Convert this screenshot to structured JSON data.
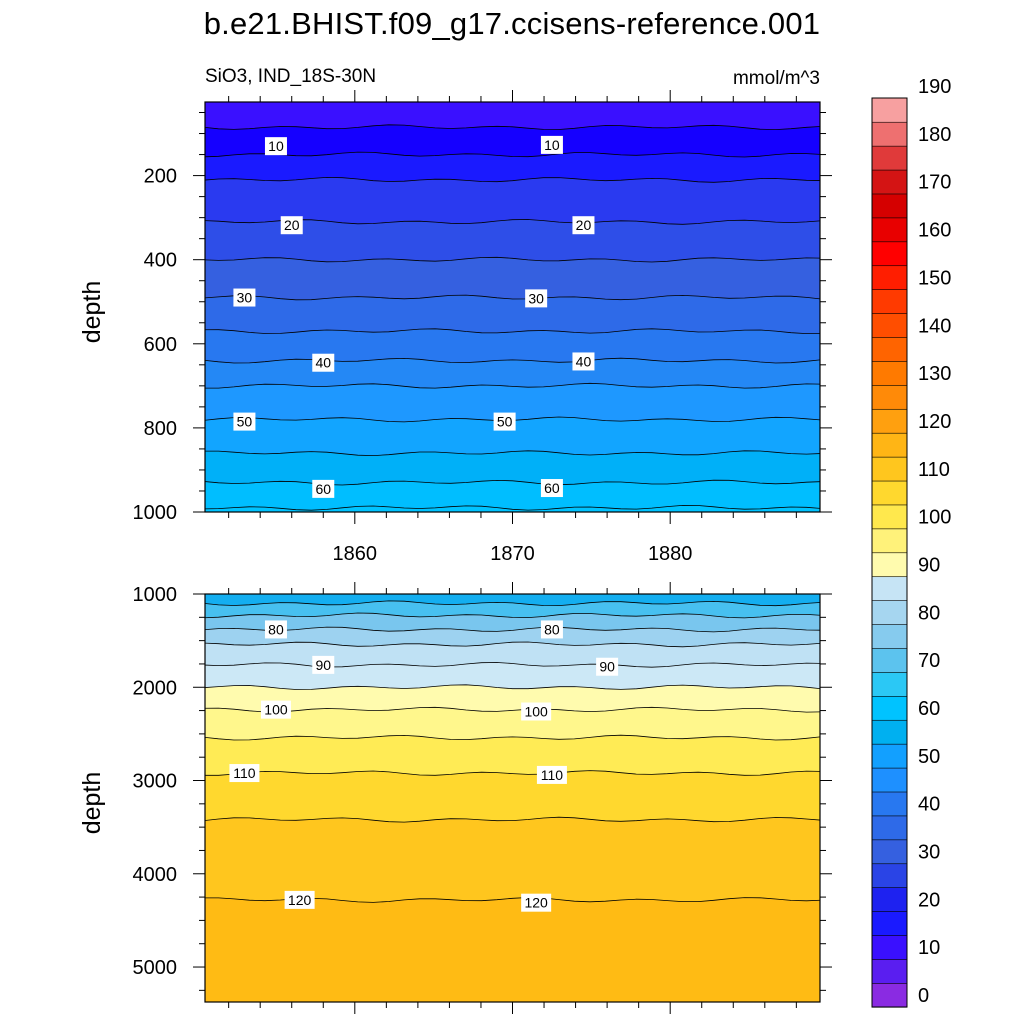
{
  "title": "b.e21.BHIST.f09_g17.ccisens-reference.001",
  "subtitle_left": "SiO3, IND_18S-30N",
  "subtitle_right": "mmol/m^3",
  "chart_data": [
    {
      "type": "heatmap",
      "panel": "upper",
      "xlabel": "",
      "ylabel": "depth",
      "x_ticks": [
        1860,
        1870,
        1880
      ],
      "xlim": [
        1850.5,
        1889.5
      ],
      "y_ticks": [
        200,
        400,
        600,
        800,
        1000
      ],
      "ylim": [
        1000,
        25
      ],
      "contour_levels": [
        5,
        10,
        15,
        20,
        25,
        30,
        35,
        40,
        45,
        50,
        55,
        60,
        65
      ],
      "contour_depths": [
        85,
        150,
        210,
        310,
        400,
        490,
        570,
        640,
        700,
        780,
        860,
        930,
        990
      ],
      "contour_labels": [
        {
          "value": 10,
          "x": 1855,
          "depth": 130
        },
        {
          "value": 10,
          "x": 1872.5,
          "depth": 127
        },
        {
          "value": 20,
          "x": 1856,
          "depth": 318
        },
        {
          "value": 20,
          "x": 1874.5,
          "depth": 318
        },
        {
          "value": 30,
          "x": 1853,
          "depth": 490
        },
        {
          "value": 30,
          "x": 1871.5,
          "depth": 492
        },
        {
          "value": 40,
          "x": 1858,
          "depth": 645
        },
        {
          "value": 40,
          "x": 1874.5,
          "depth": 642
        },
        {
          "value": 50,
          "x": 1853,
          "depth": 785
        },
        {
          "value": 50,
          "x": 1869.5,
          "depth": 785
        },
        {
          "value": 60,
          "x": 1858,
          "depth": 945
        },
        {
          "value": 60,
          "x": 1872.5,
          "depth": 943
        }
      ]
    },
    {
      "type": "heatmap",
      "panel": "lower",
      "xlabel": "",
      "ylabel": "depth",
      "x_ticks": [
        1860,
        1870,
        1880
      ],
      "xlim": [
        1850.5,
        1889.5
      ],
      "y_ticks": [
        1000,
        2000,
        3000,
        4000,
        5000
      ],
      "ylim": [
        5375,
        1000
      ],
      "contour_levels": [
        70,
        75,
        80,
        85,
        90,
        95,
        100,
        105,
        110,
        115,
        120
      ],
      "contour_depths": [
        1100,
        1230,
        1380,
        1540,
        1760,
        2000,
        2240,
        2540,
        2920,
        3420,
        4280
      ],
      "contour_labels": [
        {
          "value": 80,
          "x": 1855,
          "depth": 1380
        },
        {
          "value": 80,
          "x": 1872.5,
          "depth": 1380
        },
        {
          "value": 90,
          "x": 1858,
          "depth": 1760
        },
        {
          "value": 90,
          "x": 1876,
          "depth": 1780
        },
        {
          "value": 100,
          "x": 1855,
          "depth": 2240
        },
        {
          "value": 100,
          "x": 1871.5,
          "depth": 2260
        },
        {
          "value": 110,
          "x": 1853,
          "depth": 2920
        },
        {
          "value": 110,
          "x": 1872.5,
          "depth": 2940
        },
        {
          "value": 120,
          "x": 1856.5,
          "depth": 4280
        },
        {
          "value": 120,
          "x": 1871.5,
          "depth": 4310
        }
      ]
    }
  ],
  "colorbar": {
    "labels": [
      0,
      10,
      20,
      30,
      40,
      50,
      60,
      70,
      80,
      90,
      100,
      110,
      120,
      130,
      140,
      150,
      160,
      170,
      180,
      190
    ],
    "colors": [
      "#8A2BE2",
      "#5A1EF0",
      "#3A10FF",
      "#1A1AFF",
      "#1E22F0",
      "#2A44E6",
      "#3560E0",
      "#2E6AE8",
      "#2878F0",
      "#1E90FF",
      "#12A0FF",
      "#00B0F0",
      "#00C3FF",
      "#2BC8F5",
      "#5CC3EE",
      "#86CBEE",
      "#A6D6F0",
      "#C6E4F5",
      "#FFFBAE",
      "#FFF27A",
      "#FFE84D",
      "#FFD82E",
      "#FFC61E",
      "#FFB515",
      "#FFA00F",
      "#FF8A08",
      "#FF7A00",
      "#FF6400",
      "#FF4E00",
      "#FF3A00",
      "#FF1E00",
      "#FF0000",
      "#E80000",
      "#D50000",
      "#D41414",
      "#E03A3A",
      "#EE7070",
      "#F7A0A0"
    ]
  },
  "upper_colors": [
    "#3A10FF",
    "#1500FF",
    "#1A1AFF",
    "#2A3AF0",
    "#2E4EE8",
    "#3560E0",
    "#2E6AE8",
    "#2878F0",
    "#2488F5",
    "#1E98FF",
    "#12A5FF",
    "#00B0F8",
    "#00BEFF",
    "#00C3FF"
  ],
  "lower_colors": [
    "#14AEF0",
    "#47C0F0",
    "#79C6EE",
    "#9DD2F0",
    "#BFE1F4",
    "#CCE8F6",
    "#FFFBAE",
    "#FFF78C",
    "#FFEB55",
    "#FFD82E",
    "#FFC61E",
    "#FFBB14"
  ]
}
